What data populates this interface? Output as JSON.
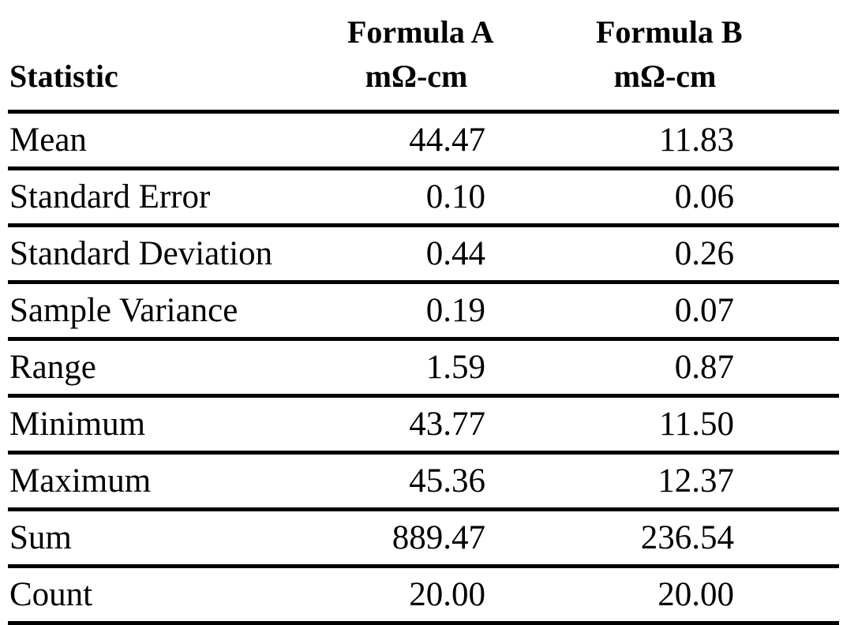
{
  "table": {
    "headers": {
      "statistic": "Statistic",
      "formula_a": {
        "line1": "Formula A",
        "line2": "mΩ-cm"
      },
      "formula_b": {
        "line1": "Formula B",
        "line2": "mΩ-cm"
      }
    },
    "rows": [
      {
        "label": "Mean",
        "a": "44.47",
        "b": "11.83"
      },
      {
        "label": "Standard Error",
        "a": "0.10",
        "b": "0.06"
      },
      {
        "label": "Standard Deviation",
        "a": "0.44",
        "b": "0.26"
      },
      {
        "label": "Sample Variance",
        "a": "0.19",
        "b": "0.07"
      },
      {
        "label": "Range",
        "a": "1.59",
        "b": "0.87"
      },
      {
        "label": "Minimum",
        "a": "43.77",
        "b": "11.50"
      },
      {
        "label": "Maximum",
        "a": "45.36",
        "b": "12.37"
      },
      {
        "label": "Sum",
        "a": "889.47",
        "b": "236.54"
      },
      {
        "label": "Count",
        "a": "20.00",
        "b": "20.00"
      }
    ]
  }
}
